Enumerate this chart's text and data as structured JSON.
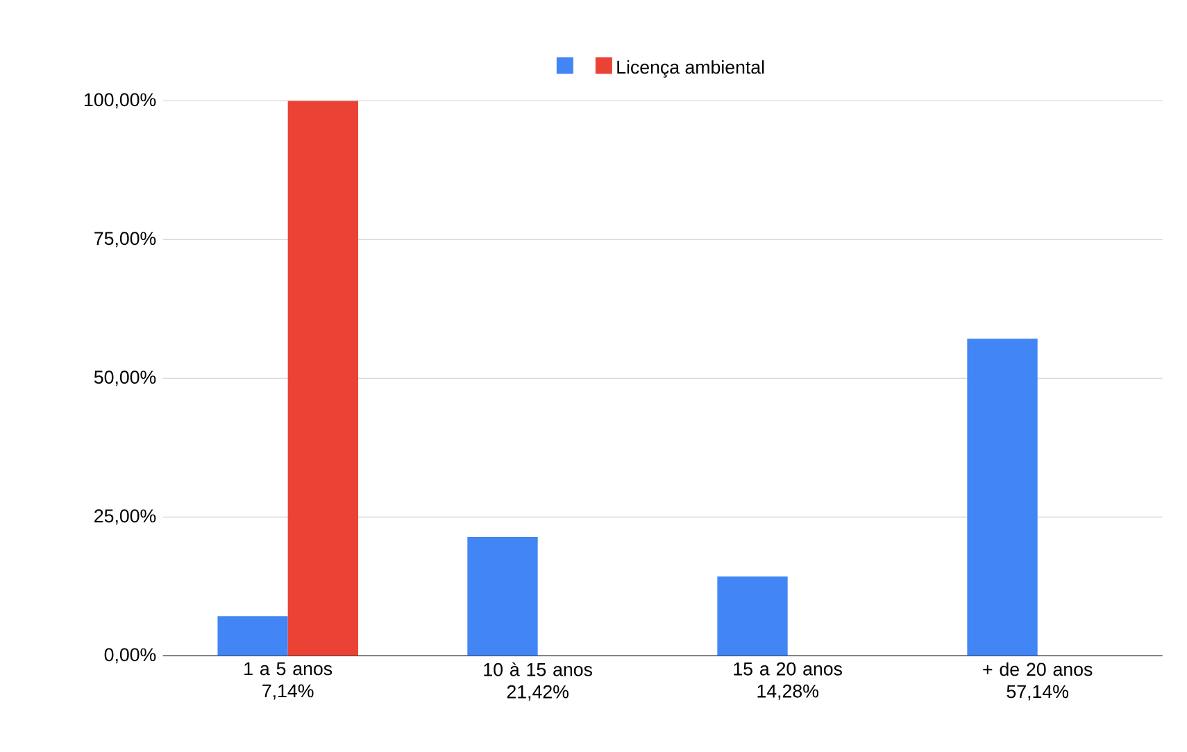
{
  "chart_data": {
    "type": "bar",
    "categories": [
      "1 a 5 anos  7,14%",
      "10 à 15 anos 21,42%",
      "15 a 20 anos 14,28%",
      "+ de 20 anos 57,14%"
    ],
    "series": [
      {
        "color": "#4285f4",
        "values": [
          7.14,
          21.42,
          14.28,
          57.14
        ]
      },
      {
        "name": "Licença ambiental",
        "color": "#ea4335",
        "values": [
          100,
          null,
          null,
          null
        ]
      }
    ],
    "ylim": [
      0,
      100
    ],
    "yticks": [
      {
        "value": 0,
        "label": "0,00%"
      },
      {
        "value": 25,
        "label": "25,00%"
      },
      {
        "value": 50,
        "label": "50,00%"
      },
      {
        "value": 75,
        "label": "75,00%"
      },
      {
        "value": 100,
        "label": "100,00%"
      }
    ],
    "grid": "y",
    "legend": "top"
  }
}
